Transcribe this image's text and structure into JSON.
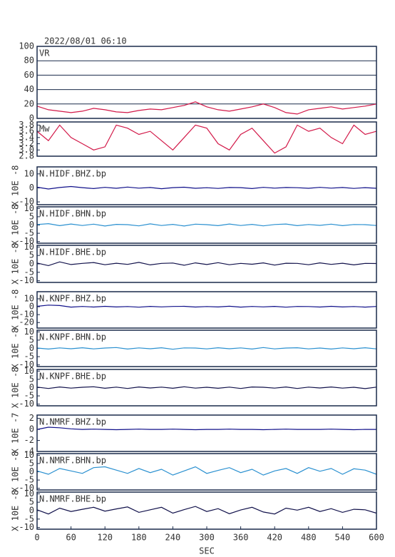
{
  "chart_data": [
    {
      "type": "line",
      "title": "2022/08/01 06:10",
      "label": "VR",
      "color": "#d21848",
      "grid": true,
      "xlim": [
        0,
        600
      ],
      "ylim": [
        0,
        100
      ],
      "yticks": [
        0,
        20,
        40,
        60,
        80,
        100
      ],
      "x": [
        0,
        20,
        40,
        60,
        80,
        100,
        120,
        140,
        160,
        180,
        200,
        220,
        240,
        260,
        280,
        300,
        320,
        340,
        360,
        380,
        400,
        420,
        440,
        460,
        480,
        500,
        520,
        540,
        560,
        580,
        600
      ],
      "values": [
        17,
        12,
        10,
        8,
        10,
        14,
        12,
        9,
        8,
        11,
        13,
        12,
        15,
        18,
        23,
        16,
        12,
        10,
        13,
        16,
        20,
        15,
        8,
        6,
        12,
        14,
        16,
        13,
        15,
        17,
        20
      ]
    },
    {
      "type": "line",
      "label": "Mw",
      "color": "#d21848",
      "xlim": [
        0,
        600
      ],
      "ylim": [
        2.8,
        3.9
      ],
      "yticks": [
        2.8,
        {
          "value": 3,
          "label": "3.0"
        },
        3.2,
        3.4,
        3.6,
        3.8
      ],
      "x": [
        0,
        20,
        40,
        60,
        80,
        100,
        120,
        140,
        160,
        180,
        200,
        220,
        240,
        260,
        280,
        300,
        320,
        340,
        360,
        380,
        400,
        420,
        440,
        460,
        480,
        500,
        520,
        540,
        560,
        580,
        600
      ],
      "values": [
        3.6,
        3.3,
        3.8,
        3.4,
        3.2,
        3.0,
        3.1,
        3.8,
        3.7,
        3.5,
        3.6,
        3.3,
        3.0,
        3.4,
        3.8,
        3.7,
        3.2,
        3.0,
        3.5,
        3.7,
        3.3,
        2.9,
        3.1,
        3.8,
        3.6,
        3.7,
        3.4,
        3.2,
        3.8,
        3.5,
        3.6
      ]
    },
    {
      "type": "line",
      "label": "N.HIDF.BHZ.bp",
      "ylabel": "X 10E -8",
      "color": "#10108a",
      "xlim": [
        0,
        600
      ],
      "ylim": [
        -12,
        15
      ],
      "yticks": [
        10,
        0,
        -10
      ],
      "x": [
        0,
        20,
        40,
        60,
        80,
        100,
        120,
        140,
        160,
        180,
        200,
        220,
        240,
        260,
        280,
        300,
        320,
        340,
        360,
        380,
        400,
        420,
        440,
        460,
        480,
        500,
        520,
        540,
        560,
        580,
        600
      ],
      "values": [
        0.5,
        -0.8,
        0.3,
        1,
        0.2,
        -0.5,
        0.4,
        -0.3,
        0.6,
        -0.2,
        0.3,
        -0.6,
        0.2,
        0.5,
        -0.3,
        0.1,
        -0.4,
        0.3,
        0.2,
        -0.5,
        0.4,
        -0.2,
        0.3,
        0.1,
        -0.3,
        0.4,
        -0.2,
        0.3,
        -0.4,
        0.2,
        -0.3
      ]
    },
    {
      "type": "line",
      "label": "N.HIDF.BHN.bp",
      "ylabel": "X 10E -8",
      "color": "#2a90d0",
      "xlim": [
        0,
        600
      ],
      "ylim": [
        -11,
        11
      ],
      "yticks": [
        10,
        5,
        0,
        -5,
        -10
      ],
      "x": [
        0,
        20,
        40,
        60,
        80,
        100,
        120,
        140,
        160,
        180,
        200,
        220,
        240,
        260,
        280,
        300,
        320,
        340,
        360,
        380,
        400,
        420,
        440,
        460,
        480,
        500,
        520,
        540,
        560,
        580,
        600
      ],
      "values": [
        0.3,
        0.8,
        -0.4,
        0.6,
        -0.3,
        0.5,
        -0.6,
        0.4,
        0.2,
        -0.5,
        0.7,
        -0.3,
        0.4,
        -0.6,
        0.5,
        0.2,
        -0.4,
        0.6,
        -0.3,
        0.4,
        -0.5,
        0.3,
        0.6,
        -0.4,
        0.3,
        -0.2,
        0.5,
        -0.4,
        0.3,
        0.2,
        -0.3
      ]
    },
    {
      "type": "line",
      "label": "N.HIDF.BHE.bp",
      "ylabel": "X 10E -8",
      "color": "#10104a",
      "xlim": [
        0,
        600
      ],
      "ylim": [
        -11,
        11
      ],
      "yticks": [
        10,
        5,
        0,
        -5,
        -10
      ],
      "x": [
        0,
        20,
        40,
        60,
        80,
        100,
        120,
        140,
        160,
        180,
        200,
        220,
        240,
        260,
        280,
        300,
        320,
        340,
        360,
        380,
        400,
        420,
        440,
        460,
        480,
        500,
        520,
        540,
        560,
        580,
        600
      ],
      "values": [
        0.5,
        -1,
        1.2,
        -0.4,
        0.3,
        0.8,
        -0.5,
        0.4,
        -0.3,
        0.9,
        -0.6,
        0.3,
        0.5,
        -0.8,
        0.6,
        -0.4,
        0.7,
        -0.5,
        0.3,
        -0.2,
        0.6,
        -0.7,
        0.4,
        0.3,
        -0.5,
        0.6,
        -0.3,
        0.4,
        -0.6,
        0.3,
        0.2
      ]
    },
    {
      "type": "line",
      "label": "N.KNPF.BHZ.bp",
      "ylabel": "X 10E -8",
      "color": "#10108a",
      "xlim": [
        0,
        600
      ],
      "ylim": [
        -27,
        19
      ],
      "yticks": [
        10,
        0,
        -10,
        -20
      ],
      "x": [
        0,
        20,
        40,
        60,
        80,
        100,
        120,
        140,
        160,
        180,
        200,
        220,
        240,
        260,
        280,
        300,
        320,
        340,
        360,
        380,
        400,
        420,
        440,
        460,
        480,
        500,
        520,
        540,
        560,
        580,
        600
      ],
      "values": [
        0.5,
        2,
        1.5,
        -0.5,
        0.3,
        -0.4,
        0.5,
        -0.3,
        0.2,
        -0.6,
        0.4,
        -0.2,
        0.3,
        0.5,
        -0.4,
        0.2,
        -0.3,
        0.6,
        -0.5,
        0.3,
        -0.2,
        0.4,
        -0.6,
        0.3,
        0.2,
        -0.4,
        0.5,
        -0.3,
        0.2,
        -0.5,
        0.3
      ]
    },
    {
      "type": "line",
      "label": "N.KNPF.BHN.bp",
      "ylabel": "X 10E -8",
      "color": "#2a90d0",
      "xlim": [
        0,
        600
      ],
      "ylim": [
        -11,
        11
      ],
      "yticks": [
        10,
        5,
        0,
        -5,
        -10
      ],
      "x": [
        0,
        20,
        40,
        60,
        80,
        100,
        120,
        140,
        160,
        180,
        200,
        220,
        240,
        260,
        280,
        300,
        320,
        340,
        360,
        380,
        400,
        420,
        440,
        460,
        480,
        500,
        520,
        540,
        560,
        580,
        600
      ],
      "values": [
        0.2,
        -0.4,
        0.3,
        -0.2,
        0.4,
        -0.3,
        0.2,
        0.5,
        -0.4,
        0.3,
        -0.2,
        0.4,
        -0.5,
        0.3,
        0.2,
        -0.3,
        0.4,
        -0.2,
        0.3,
        -0.4,
        0.5,
        -0.3,
        0.2,
        0.4,
        -0.3,
        0.2,
        -0.4,
        0.3,
        -0.2,
        0.4,
        -0.3
      ]
    },
    {
      "type": "line",
      "label": "N.KNPF.BHE.bp",
      "ylabel": "X 10E -8",
      "color": "#10104a",
      "xlim": [
        0,
        600
      ],
      "ylim": [
        -11,
        11
      ],
      "yticks": [
        10,
        5,
        0,
        -5,
        -10
      ],
      "x": [
        0,
        20,
        40,
        60,
        80,
        100,
        120,
        140,
        160,
        180,
        200,
        220,
        240,
        260,
        280,
        300,
        320,
        340,
        360,
        380,
        400,
        420,
        440,
        460,
        480,
        500,
        520,
        540,
        560,
        580,
        600
      ],
      "values": [
        0.3,
        -0.5,
        0.4,
        -0.3,
        0.2,
        0.5,
        -0.4,
        0.3,
        -0.5,
        0.4,
        -0.2,
        0.3,
        -0.4,
        0.5,
        -0.3,
        0.2,
        -0.4,
        0.3,
        -0.5,
        0.4,
        0.2,
        -0.3,
        0.4,
        -0.5,
        0.3,
        -0.2,
        0.4,
        -0.3,
        0.2,
        -0.6,
        0.3
      ]
    },
    {
      "type": "line",
      "label": "N.NMRF.BHZ.bp",
      "ylabel": "X 10E -7",
      "color": "#10108a",
      "xlim": [
        0,
        600
      ],
      "ylim": [
        -4,
        2.6
      ],
      "yticks": [
        2,
        0,
        -2,
        -4
      ],
      "x": [
        0,
        20,
        40,
        60,
        80,
        100,
        120,
        140,
        160,
        180,
        200,
        220,
        240,
        260,
        280,
        300,
        320,
        340,
        360,
        380,
        400,
        420,
        440,
        460,
        480,
        500,
        520,
        540,
        560,
        580,
        600
      ],
      "values": [
        0,
        0.4,
        0.3,
        0.1,
        0,
        0.05,
        0,
        -0.05,
        0,
        0.05,
        0,
        0,
        0.05,
        0,
        -0.05,
        0,
        0,
        0.05,
        0,
        0,
        -0.05,
        0,
        0.05,
        0,
        0,
        0,
        0.05,
        0,
        -0.05,
        0,
        0
      ]
    },
    {
      "type": "line",
      "label": "N.NMRF.BHN.bp",
      "ylabel": "X 10E -8",
      "color": "#2a90d0",
      "xlim": [
        0,
        600
      ],
      "ylim": [
        -11,
        11
      ],
      "yticks": [
        10,
        5,
        0,
        -5,
        -10
      ],
      "x": [
        0,
        20,
        40,
        60,
        80,
        100,
        120,
        140,
        160,
        180,
        200,
        220,
        240,
        260,
        280,
        300,
        320,
        340,
        360,
        380,
        400,
        420,
        440,
        460,
        480,
        500,
        520,
        540,
        560,
        580,
        600
      ],
      "values": [
        0.5,
        -1.5,
        2,
        0.5,
        -1,
        2.5,
        3,
        1,
        -1,
        2,
        -0.5,
        1.5,
        -2,
        0.5,
        3,
        -1,
        0.8,
        2.5,
        -0.5,
        1.5,
        -2,
        0.5,
        2,
        -1,
        2.5,
        0.3,
        2,
        -1.5,
        1.8,
        1,
        -1.5
      ]
    },
    {
      "type": "line",
      "label": "N.NMRF.BHE.bp",
      "ylabel": "X 10E -8",
      "color": "#10104a",
      "xlabel": "SEC",
      "xlim": [
        0,
        600
      ],
      "ylim": [
        -11,
        11
      ],
      "yticks": [
        10,
        5,
        0,
        -5,
        -10
      ],
      "xticks": [
        0,
        60,
        120,
        180,
        240,
        300,
        360,
        420,
        480,
        540,
        600
      ],
      "x": [
        0,
        20,
        40,
        60,
        80,
        100,
        120,
        140,
        160,
        180,
        200,
        220,
        240,
        260,
        280,
        300,
        320,
        340,
        360,
        380,
        400,
        420,
        440,
        460,
        480,
        500,
        520,
        540,
        560,
        580,
        600
      ],
      "values": [
        0.5,
        -2,
        1.5,
        -0.5,
        0.8,
        2,
        -0.3,
        1,
        2.2,
        -1,
        0.5,
        2,
        -1.5,
        0.6,
        2.5,
        -0.5,
        1.2,
        -1.8,
        0.4,
        2,
        -0.8,
        -2,
        1.5,
        0.3,
        2,
        -0.5,
        1.2,
        -1,
        0.8,
        0.5,
        -1.5
      ]
    }
  ]
}
